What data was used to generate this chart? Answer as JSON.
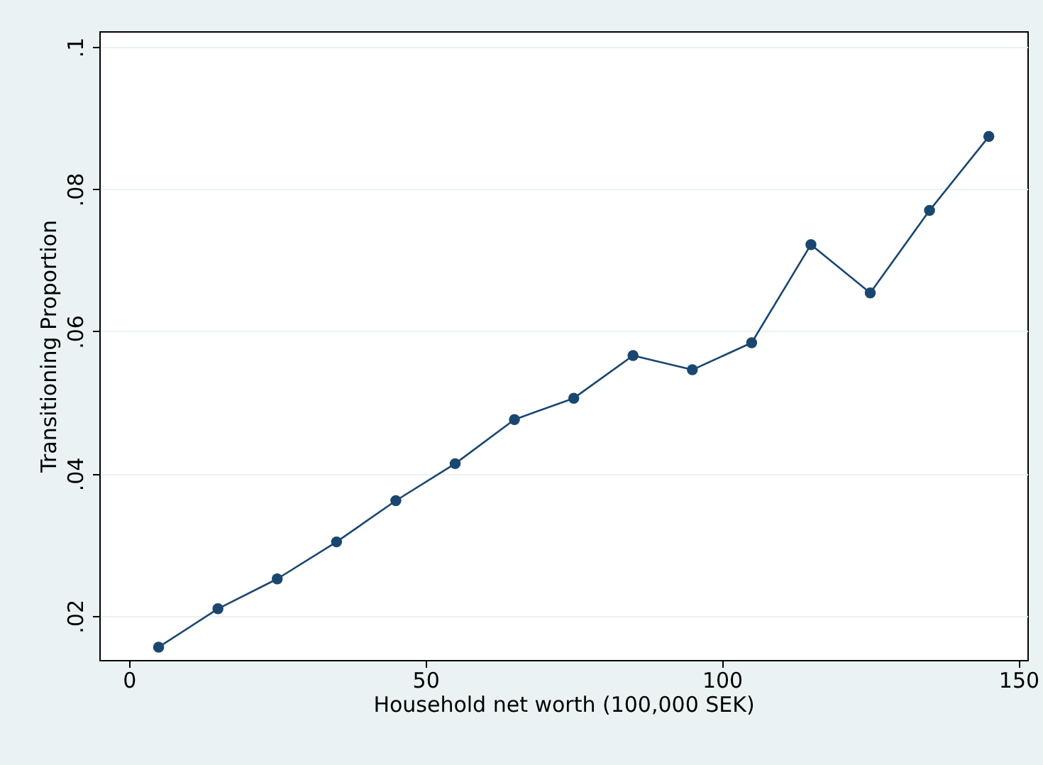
{
  "chart_data": {
    "type": "line",
    "xlabel": "Household net worth (100,000 SEK)",
    "ylabel": "Transitioning Proportion",
    "x": [
      5,
      15,
      25,
      35,
      45,
      55,
      65,
      75,
      85,
      95,
      105,
      115,
      125,
      135,
      145
    ],
    "series": [
      {
        "color": "#1a476f",
        "values": [
          0.0156,
          0.021,
          0.0252,
          0.0304,
          0.0362,
          0.0414,
          0.0476,
          0.0506,
          0.0566,
          0.0546,
          0.0584,
          0.0722,
          0.0654,
          0.077,
          0.0874
        ]
      }
    ],
    "xlim": [
      -5,
      151.5
    ],
    "ylim": [
      0.0138,
      0.1022
    ],
    "xticks": [
      0,
      50,
      100,
      150
    ],
    "yticks": [
      {
        "value": 0.02,
        "label": ".02"
      },
      {
        "value": 0.04,
        "label": ".04"
      },
      {
        "value": 0.06,
        "label": ".06"
      },
      {
        "value": 0.08,
        "label": ".08"
      },
      {
        "value": 0.1,
        "label": ".1"
      }
    ],
    "grid": "y",
    "marker": "circle",
    "line_style": "solid"
  }
}
